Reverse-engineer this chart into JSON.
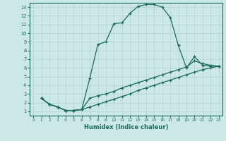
{
  "xlabel": "Humidex (Indice chaleur)",
  "ylabel": "",
  "bg_color": "#cce8e4",
  "grid_color": "#b8d8d4",
  "line_color": "#1a6b5a",
  "xlim": [
    -0.5,
    23.5
  ],
  "ylim": [
    0.5,
    13.5
  ],
  "xticks": [
    0,
    1,
    2,
    3,
    4,
    5,
    6,
    7,
    8,
    9,
    10,
    11,
    12,
    13,
    14,
    15,
    16,
    17,
    18,
    19,
    20,
    21,
    22,
    23
  ],
  "yticks": [
    1,
    2,
    3,
    4,
    5,
    6,
    7,
    8,
    9,
    10,
    11,
    12,
    13
  ],
  "curve1_x": [
    1,
    2,
    3,
    4,
    5,
    6,
    7,
    8,
    9,
    10,
    11,
    12,
    13,
    14,
    15,
    16,
    17,
    18,
    19,
    20,
    21,
    22,
    23
  ],
  "curve1_y": [
    2.5,
    1.8,
    1.5,
    1.1,
    1.1,
    1.2,
    4.8,
    8.7,
    9.0,
    11.1,
    11.2,
    12.3,
    13.1,
    13.3,
    13.3,
    13.0,
    11.8,
    8.6,
    6.0,
    7.3,
    6.3,
    6.2,
    6.2
  ],
  "curve2_x": [
    1,
    2,
    3,
    4,
    5,
    6,
    7,
    8,
    9,
    10,
    11,
    12,
    13,
    14,
    15,
    16,
    17,
    18,
    19,
    20,
    21,
    22,
    23
  ],
  "curve2_y": [
    2.5,
    1.8,
    1.5,
    1.1,
    1.1,
    1.2,
    2.5,
    2.8,
    3.0,
    3.3,
    3.7,
    4.0,
    4.3,
    4.6,
    4.9,
    5.2,
    5.5,
    5.8,
    6.1,
    6.8,
    6.5,
    6.3,
    6.2
  ],
  "curve3_x": [
    1,
    2,
    3,
    4,
    5,
    6,
    7,
    8,
    9,
    10,
    11,
    12,
    13,
    14,
    15,
    16,
    17,
    18,
    19,
    20,
    21,
    22,
    23
  ],
  "curve3_y": [
    2.5,
    1.8,
    1.5,
    1.1,
    1.1,
    1.2,
    1.5,
    1.8,
    2.1,
    2.4,
    2.7,
    3.0,
    3.4,
    3.7,
    4.0,
    4.3,
    4.6,
    4.9,
    5.2,
    5.5,
    5.8,
    6.0,
    6.2
  ]
}
